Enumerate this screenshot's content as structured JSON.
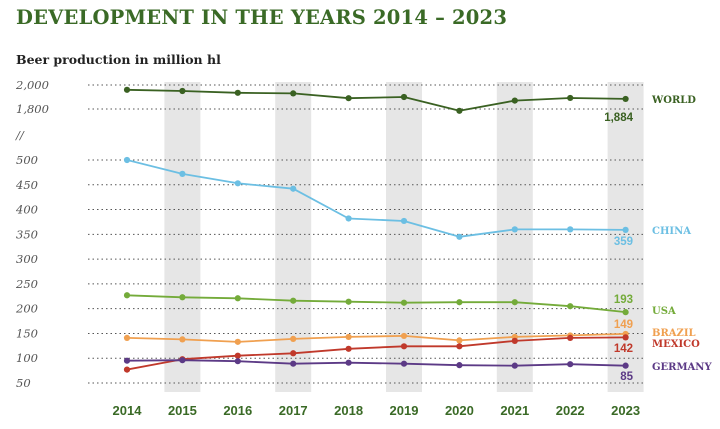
{
  "title": "DEVELOPMENT IN THE YEARS 2014 – 2023",
  "subtitle": "Beer production in million hl",
  "colors": {
    "title": "#3a6a26",
    "axis_text": "#555555",
    "year_text": "#3a6a26",
    "grid": "#555555",
    "band": "#e6e6e6"
  },
  "chart_data": {
    "type": "line",
    "title": "DEVELOPMENT IN THE YEARS 2014 – 2023",
    "ylabel": "Beer production in million hl",
    "xlabel": "",
    "grid": true,
    "legend": "right",
    "y_scale": "broken",
    "ylim": [
      50,
      2000
    ],
    "y_ticks_upper": [
      "2,000",
      "1,800"
    ],
    "y_tick_values_upper": [
      2000,
      1800
    ],
    "y_break_label": "//",
    "y_ticks_lower": [
      "500",
      "450",
      "400",
      "350",
      "300",
      "250",
      "200",
      "150",
      "100",
      "50"
    ],
    "y_tick_values_lower": [
      500,
      450,
      400,
      350,
      300,
      250,
      200,
      150,
      100,
      50
    ],
    "categories": [
      "2014",
      "2015",
      "2016",
      "2017",
      "2018",
      "2019",
      "2020",
      "2021",
      "2022",
      "2023"
    ],
    "series": [
      {
        "name": "WORLD",
        "color": "#3a6122",
        "axis": "upper",
        "end_label": "1,884",
        "values": [
          1960,
          1950,
          1935,
          1930,
          1890,
          1900,
          1785,
          1870,
          1892,
          1884
        ]
      },
      {
        "name": "CHINA",
        "color": "#6cbfe3",
        "axis": "lower",
        "end_label": "359",
        "values": [
          500,
          472,
          453,
          442,
          382,
          377,
          345,
          360,
          360,
          359
        ]
      },
      {
        "name": "USA",
        "color": "#74ab3a",
        "axis": "lower",
        "end_label": "193",
        "values": [
          227,
          223,
          221,
          216,
          214,
          212,
          213,
          213,
          205,
          193
        ]
      },
      {
        "name": "BRAZIL",
        "color": "#f0a050",
        "axis": "lower",
        "end_label": "149",
        "values": [
          141,
          138,
          133,
          139,
          143,
          145,
          136,
          143,
          146,
          149
        ]
      },
      {
        "name": "MEXICO",
        "color": "#c0392b",
        "axis": "lower",
        "end_label": "142",
        "values": [
          77,
          98,
          105,
          110,
          119,
          124,
          124,
          135,
          141,
          142
        ]
      },
      {
        "name": "GERMANY",
        "color": "#5c3a86",
        "axis": "lower",
        "end_label": "85",
        "values": [
          95,
          96,
          94,
          89,
          91,
          89,
          86,
          85,
          88,
          85
        ]
      }
    ]
  }
}
